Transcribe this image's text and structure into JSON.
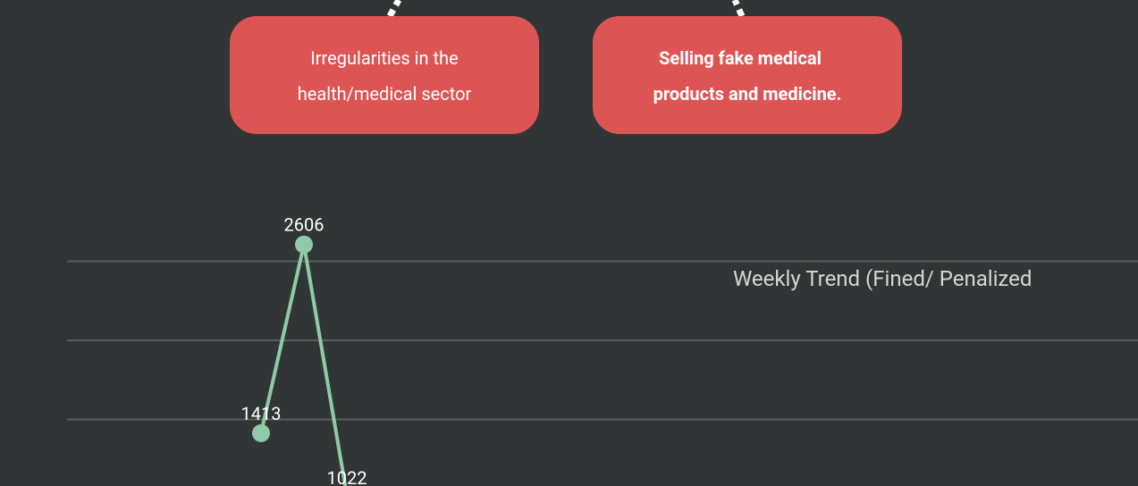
{
  "boxes": [
    {
      "lines": [
        "Irregularities in the",
        "health/medical sector"
      ]
    },
    {
      "lines": [
        "Selling fake medical",
        "products and medicine."
      ]
    }
  ],
  "chart_data": {
    "type": "line",
    "title": "Weekly Trend (Fined/ Penalized",
    "categories": [
      null,
      null,
      null
    ],
    "series": [
      {
        "name": null,
        "color": "#8fc9a6",
        "values": [
          1413,
          2606,
          1022
        ]
      }
    ],
    "ylim": [
      1000,
      3000
    ],
    "yticks": [
      1500,
      2000,
      2500
    ],
    "grid": true
  }
}
